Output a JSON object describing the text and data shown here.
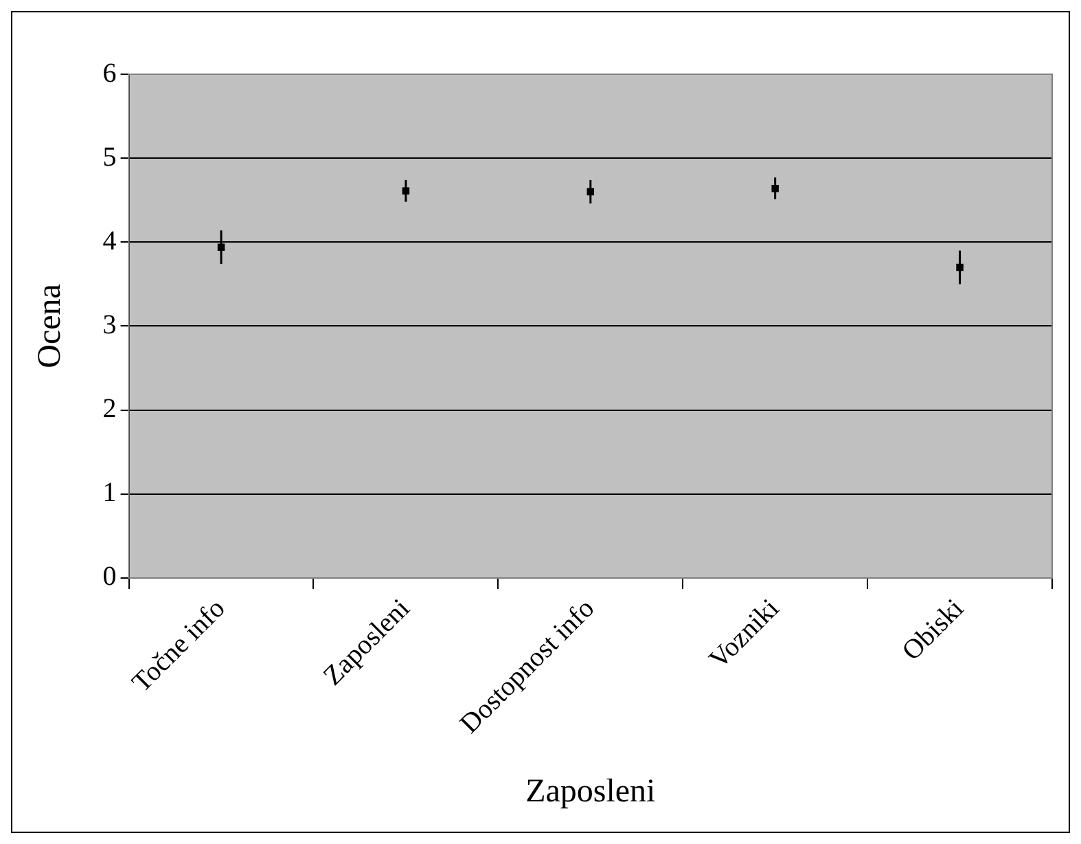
{
  "chart_data": {
    "type": "scatter",
    "xlabel": "Zaposleni",
    "ylabel": "Ocena",
    "categories": [
      "Točne info",
      "Zaposleni",
      "Dostopnost info",
      "Vozniki",
      "Obiski"
    ],
    "series": [
      {
        "color": "#000000",
        "values": [
          3.94,
          4.61,
          4.6,
          4.64,
          3.7
        ],
        "errors": [
          0.2,
          0.13,
          0.14,
          0.13,
          0.2
        ]
      }
    ],
    "ylim": [
      0,
      6
    ],
    "yticks": [
      0,
      1,
      2,
      3,
      4,
      5,
      6
    ],
    "grid": "y",
    "legend": false,
    "marker": "square"
  }
}
